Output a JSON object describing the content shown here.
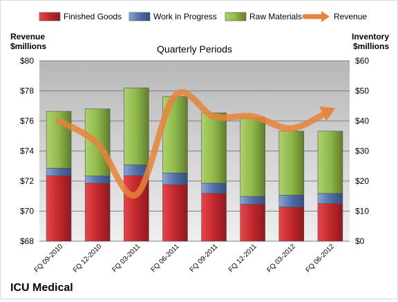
{
  "chart_data": {
    "type": "bar",
    "stacked": true,
    "title": "Quarterly Periods",
    "company": "ICU Medical",
    "categories": [
      "FQ 09-2010",
      "FQ 12-2010",
      "FQ 03-2011",
      "FQ 06-2011",
      "FQ 09-2011",
      "FQ 12-2011",
      "FQ 03-2012",
      "FQ 06-2012"
    ],
    "series": [
      {
        "name": "Finished Goods",
        "axis": "right",
        "color": "#c0282d",
        "values": [
          21.8,
          19.3,
          21.8,
          18.8,
          15.9,
          12.3,
          11.4,
          12.5
        ]
      },
      {
        "name": "Work in Progress",
        "axis": "right",
        "color": "#4f6fa8",
        "values": [
          2.5,
          2.4,
          3.6,
          3.9,
          3.4,
          2.6,
          3.9,
          3.4
        ]
      },
      {
        "name": "Raw Materials",
        "axis": "right",
        "color": "#8fb84a",
        "values": [
          18.9,
          22.3,
          25.6,
          25.4,
          23.4,
          26.2,
          21.3,
          20.7
        ]
      },
      {
        "name": "Revenue",
        "axis": "left",
        "type": "line",
        "color": "#e8833a",
        "values": [
          76.0,
          74.5,
          71.1,
          77.7,
          76.3,
          76.3,
          75.5,
          76.7
        ]
      }
    ],
    "y_left": {
      "label_line1": "Revenue",
      "label_line2": "$millions",
      "min": 68,
      "max": 80,
      "ticks": [
        "$68",
        "$70",
        "$72",
        "$74",
        "$76",
        "$78",
        "$80"
      ]
    },
    "y_right": {
      "label_line1": "Inventory",
      "label_line2": "$millions",
      "min": 0,
      "max": 60,
      "ticks": [
        "$0",
        "$10",
        "$20",
        "$30",
        "$40",
        "$50",
        "$60"
      ]
    },
    "legend_position": "top",
    "grid": true
  }
}
